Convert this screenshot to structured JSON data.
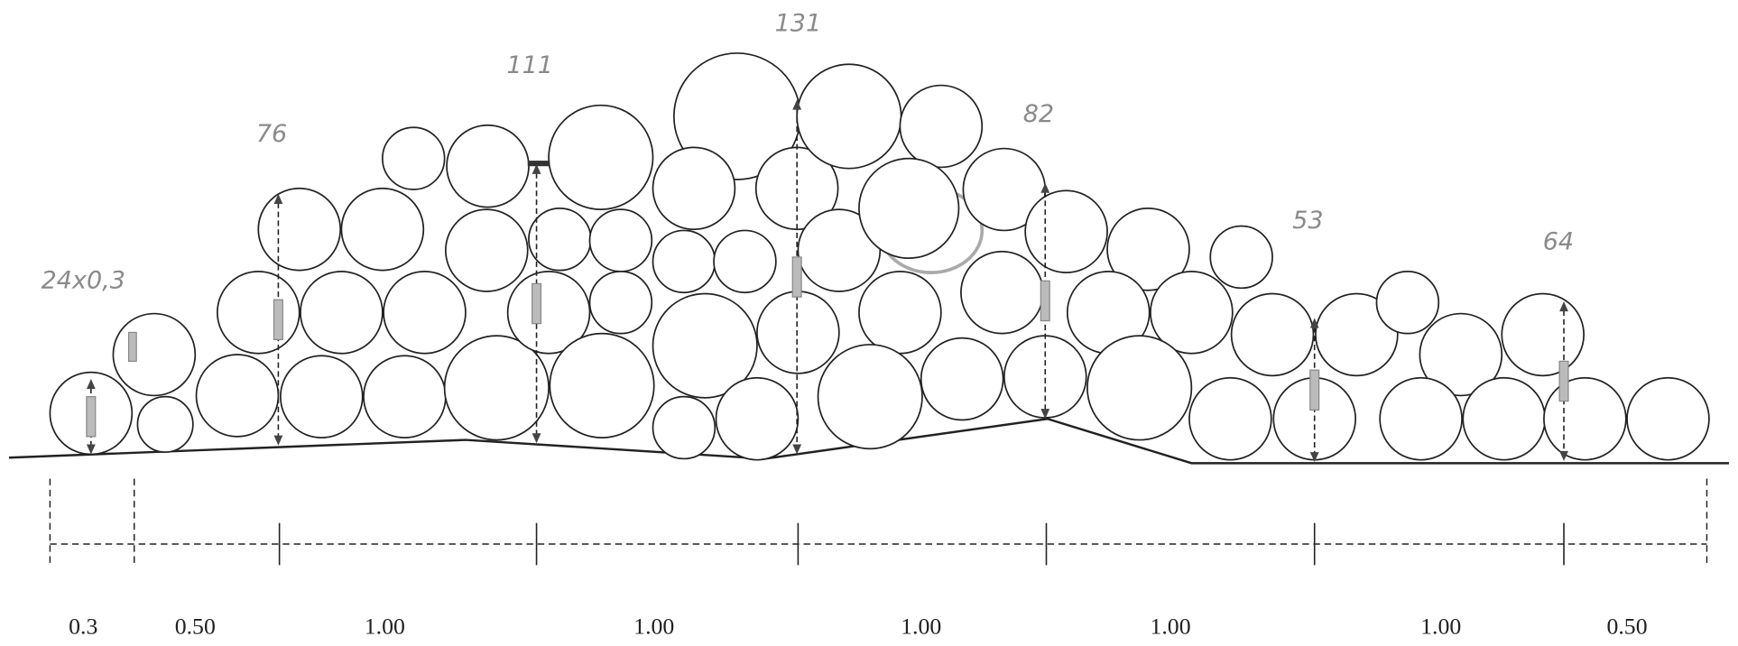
{
  "heights": [
    "24x0,3",
    "76",
    "111",
    "131",
    "82",
    "53",
    "64"
  ],
  "marked_log": "29",
  "spacings": [
    "0.3",
    "0.50",
    "1.00",
    "1.00",
    "1.00",
    "1.00",
    "1.00",
    "0.50"
  ]
}
